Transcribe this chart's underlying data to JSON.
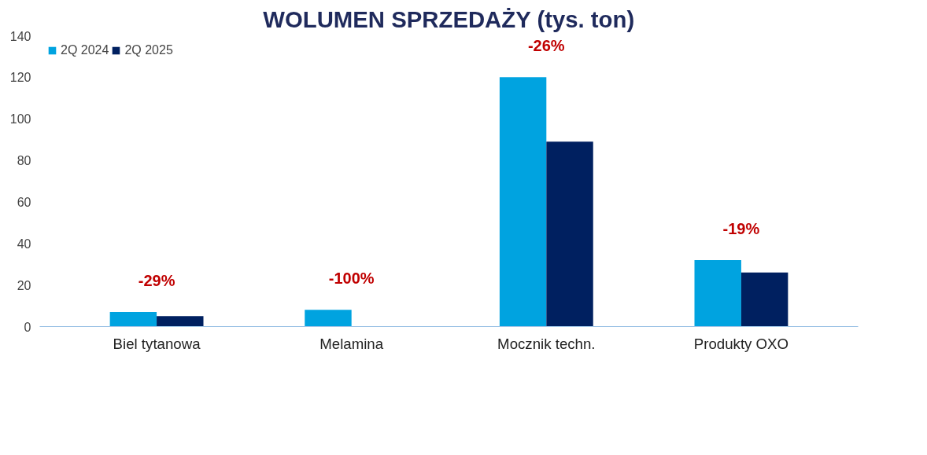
{
  "chart_data": {
    "type": "bar",
    "title": "WOLUMEN SPRZEDAŻY (tys. ton)",
    "categories": [
      "Biel tytanowa",
      "Melamina",
      "Mocznik techn.",
      "Produkty OXO"
    ],
    "series": [
      {
        "name": "2Q 2024",
        "color": "#00a3e0",
        "values": [
          7,
          8,
          120,
          32
        ]
      },
      {
        "name": "2Q 2025",
        "color": "#002060",
        "values": [
          5,
          0,
          89,
          26
        ]
      }
    ],
    "ylim": [
      0,
      140
    ],
    "yticks": [
      0,
      20,
      40,
      60,
      80,
      100,
      120,
      140
    ],
    "grid": false,
    "legend": "top left",
    "annotations": [
      "-29%",
      "-100%",
      "-26%",
      "-19%"
    ]
  }
}
